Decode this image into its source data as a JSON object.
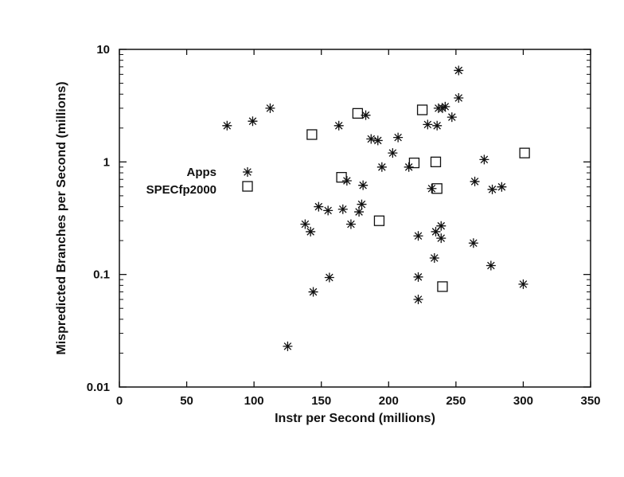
{
  "chart_data": {
    "type": "scatter",
    "xlabel": "Instr per Second (millions)",
    "ylabel": "Mispredicted Branches per Second (millions)",
    "xlim": [
      0,
      350
    ],
    "ylim": [
      0.01,
      10
    ],
    "yscale": "log",
    "x_ticks": [
      "0",
      "50",
      "100",
      "150",
      "200",
      "250",
      "300",
      "350"
    ],
    "y_ticks": [
      "0.01",
      "0.1",
      "1",
      "10"
    ],
    "grid": false,
    "legend": "left-middle",
    "series": [
      {
        "name": "Apps",
        "marker": "asterisk",
        "points": [
          [
            80,
            2.1
          ],
          [
            99,
            2.3
          ],
          [
            112,
            3.0
          ],
          [
            138,
            0.28
          ],
          [
            142,
            0.24
          ],
          [
            144,
            0.07
          ],
          [
            148,
            0.4
          ],
          [
            155,
            0.37
          ],
          [
            156,
            0.094
          ],
          [
            163,
            2.1
          ],
          [
            166,
            0.38
          ],
          [
            169,
            0.68
          ],
          [
            172,
            0.28
          ],
          [
            178,
            0.36
          ],
          [
            180,
            0.42
          ],
          [
            181,
            0.62
          ],
          [
            183,
            2.6
          ],
          [
            187,
            1.6
          ],
          [
            192,
            1.55
          ],
          [
            195,
            0.9
          ],
          [
            203,
            1.2
          ],
          [
            207,
            1.65
          ],
          [
            215,
            0.9
          ],
          [
            222,
            0.22
          ],
          [
            222,
            0.095
          ],
          [
            222,
            0.06
          ],
          [
            229,
            2.15
          ],
          [
            232,
            0.58
          ],
          [
            234,
            0.14
          ],
          [
            235,
            0.24
          ],
          [
            236,
            2.1
          ],
          [
            237,
            3.0
          ],
          [
            239,
            0.27
          ],
          [
            240,
            3.0
          ],
          [
            242,
            3.1
          ],
          [
            247,
            2.5
          ],
          [
            252,
            6.5
          ],
          [
            252,
            3.7
          ],
          [
            263,
            0.19
          ],
          [
            264,
            0.67
          ],
          [
            271,
            1.05
          ],
          [
            276,
            0.12
          ],
          [
            277,
            0.57
          ],
          [
            284,
            0.6
          ],
          [
            300,
            0.082
          ],
          [
            125,
            0.023
          ],
          [
            239,
            0.21
          ]
        ]
      },
      {
        "name": "SPECfp2000",
        "marker": "square",
        "points": [
          [
            143,
            1.75
          ],
          [
            165,
            0.73
          ],
          [
            177,
            2.7
          ],
          [
            193,
            0.3
          ],
          [
            219,
            0.98
          ],
          [
            225,
            2.9
          ],
          [
            235,
            1.0
          ],
          [
            236,
            0.58
          ],
          [
            240,
            0.078
          ],
          [
            301,
            1.2
          ]
        ]
      }
    ]
  }
}
